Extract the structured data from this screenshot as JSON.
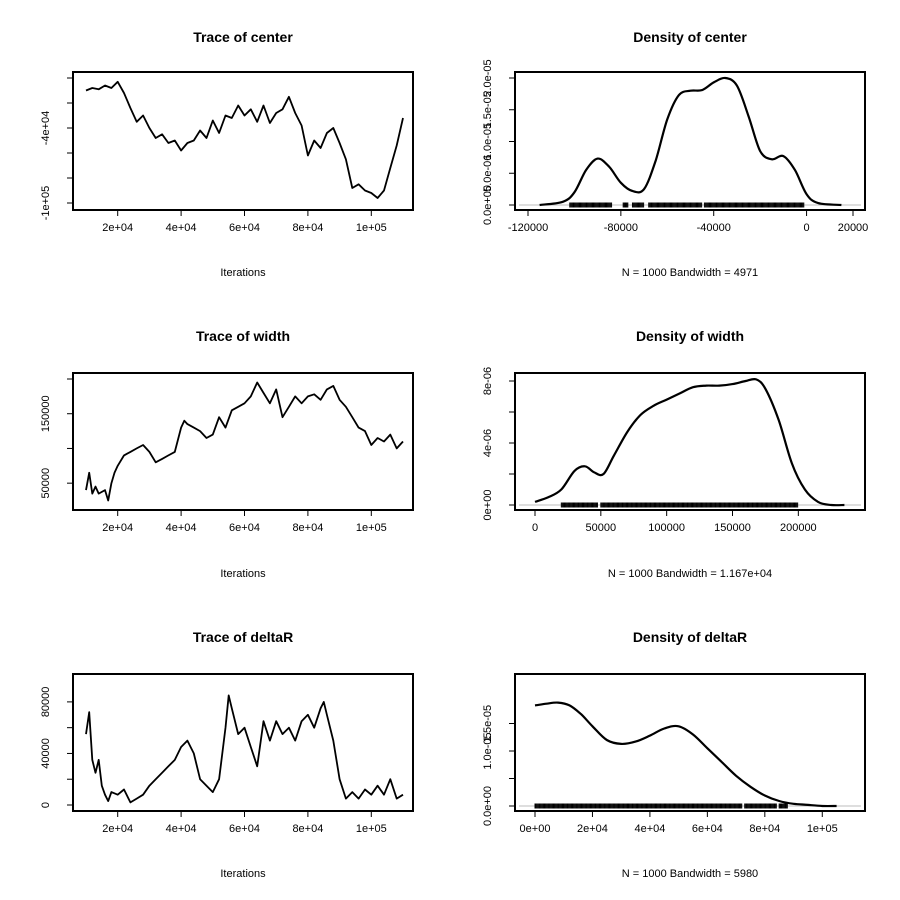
{
  "chart_data": [
    {
      "type": "line",
      "title": "Trace of center",
      "xlabel": "Iterations",
      "ylabel": "",
      "xlim": [
        10000,
        110000
      ],
      "ylim": [
        -100000,
        0
      ],
      "xticks": [
        20000,
        40000,
        60000,
        80000,
        100000
      ],
      "xtick_labels": [
        "2e+04",
        "4e+04",
        "6e+04",
        "8e+04",
        "1e+05"
      ],
      "yticks": [
        -100000,
        -80000,
        -60000,
        -40000,
        -20000,
        0
      ],
      "ytick_labels": [
        "-1e+05",
        "",
        "",
        "-4e+04",
        "",
        ""
      ],
      "x": [
        10000,
        12000,
        14000,
        16000,
        18000,
        20000,
        22000,
        24000,
        26000,
        28000,
        30000,
        32000,
        34000,
        36000,
        38000,
        40000,
        42000,
        44000,
        46000,
        48000,
        50000,
        52000,
        54000,
        56000,
        58000,
        60000,
        62000,
        64000,
        66000,
        68000,
        70000,
        72000,
        74000,
        76000,
        78000,
        80000,
        82000,
        84000,
        86000,
        88000,
        90000,
        92000,
        94000,
        96000,
        98000,
        100000,
        102000,
        104000,
        106000,
        108000,
        110000
      ],
      "y": [
        -10000,
        -8000,
        -9000,
        -6000,
        -8000,
        -3000,
        -12000,
        -24000,
        -35000,
        -30000,
        -40000,
        -48000,
        -45000,
        -52000,
        -50000,
        -58000,
        -52000,
        -50000,
        -42000,
        -48000,
        -34000,
        -44000,
        -30000,
        -32000,
        -22000,
        -30000,
        -25000,
        -35000,
        -22000,
        -36000,
        -28000,
        -25000,
        -15000,
        -28000,
        -38000,
        -62000,
        -50000,
        -56000,
        -44000,
        -40000,
        -52000,
        -65000,
        -88000,
        -85000,
        -90000,
        -92000,
        -96000,
        -90000,
        -72000,
        -54000,
        -32000
      ]
    },
    {
      "type": "area",
      "title": "Density of center",
      "xlabel": "N = 1000   Bandwidth = 4971",
      "ylabel": "",
      "xlim": [
        -120000,
        20000
      ],
      "ylim": [
        0,
        2e-05
      ],
      "xticks": [
        -120000,
        -80000,
        -40000,
        0,
        20000
      ],
      "xtick_labels": [
        "-120000",
        "-80000",
        "-40000",
        "0",
        "20000"
      ],
      "yticks": [
        0,
        5e-06,
        1e-05,
        1.5e-05,
        2e-05
      ],
      "ytick_labels": [
        "0.0e+00",
        "5.0e-06",
        "1.0e-05",
        "1.5e-05",
        "2.0e-05"
      ],
      "x": [
        -115000,
        -105000,
        -100000,
        -95000,
        -90000,
        -85000,
        -80000,
        -75000,
        -70000,
        -65000,
        -60000,
        -55000,
        -50000,
        -45000,
        -40000,
        -35000,
        -30000,
        -25000,
        -20000,
        -15000,
        -10000,
        -5000,
        0,
        5000,
        15000
      ],
      "y": [
        0,
        5e-07,
        2e-06,
        5.5e-06,
        7.3e-06,
        6e-06,
        3.5e-06,
        2.2e-06,
        2.5e-06,
        7e-06,
        1.35e-05,
        1.73e-05,
        1.8e-05,
        1.81e-05,
        1.93e-05,
        2e-05,
        1.88e-05,
        1.4e-05,
        8.5e-06,
        7.2e-06,
        7.7e-06,
        5.5e-06,
        1.7e-06,
        3e-07,
        0
      ],
      "rug": [
        [
          -102000,
          -84000
        ],
        [
          -79000,
          -77000
        ],
        [
          -75000,
          -70000
        ],
        [
          -68000,
          -45000
        ],
        [
          -44000,
          -1000
        ]
      ]
    },
    {
      "type": "line",
      "title": "Trace of width",
      "xlabel": "Iterations",
      "ylabel": "",
      "xlim": [
        10000,
        110000
      ],
      "ylim": [
        20000,
        200000
      ],
      "xticks": [
        20000,
        40000,
        60000,
        80000,
        100000
      ],
      "xtick_labels": [
        "2e+04",
        "4e+04",
        "6e+04",
        "8e+04",
        "1e+05"
      ],
      "yticks": [
        50000,
        100000,
        150000,
        200000
      ],
      "ytick_labels": [
        "50000",
        "",
        "150000",
        ""
      ],
      "x": [
        10000,
        11000,
        12000,
        13000,
        14000,
        16000,
        17000,
        18000,
        19000,
        20000,
        22000,
        24000,
        26000,
        28000,
        30000,
        32000,
        34000,
        36000,
        38000,
        40000,
        41000,
        42000,
        44000,
        46000,
        48000,
        50000,
        52000,
        54000,
        56000,
        58000,
        60000,
        62000,
        64000,
        66000,
        68000,
        70000,
        72000,
        74000,
        76000,
        78000,
        80000,
        82000,
        84000,
        86000,
        88000,
        90000,
        92000,
        94000,
        96000,
        98000,
        100000,
        102000,
        104000,
        106000,
        108000,
        110000
      ],
      "y": [
        40000,
        65000,
        35000,
        45000,
        35000,
        40000,
        25000,
        50000,
        65000,
        75000,
        90000,
        95000,
        100000,
        105000,
        95000,
        80000,
        85000,
        90000,
        95000,
        130000,
        140000,
        135000,
        130000,
        125000,
        115000,
        120000,
        145000,
        130000,
        155000,
        160000,
        165000,
        175000,
        195000,
        180000,
        165000,
        185000,
        145000,
        160000,
        175000,
        165000,
        175000,
        178000,
        170000,
        185000,
        190000,
        170000,
        160000,
        145000,
        130000,
        125000,
        105000,
        115000,
        110000,
        120000,
        100000,
        110000
      ]
    },
    {
      "type": "area",
      "title": "Density of width",
      "xlabel": "N = 1000   Bandwidth = 1.167e+04",
      "ylabel": "",
      "xlim": [
        0,
        240000
      ],
      "ylim": [
        0,
        8e-06
      ],
      "xticks": [
        0,
        50000,
        100000,
        150000,
        200000
      ],
      "xtick_labels": [
        "0",
        "50000",
        "100000",
        "150000",
        "200000"
      ],
      "yticks": [
        0,
        2e-06,
        4e-06,
        6e-06,
        8e-06
      ],
      "ytick_labels": [
        "0e+00",
        "",
        "4e-06",
        "",
        "8e-06"
      ],
      "x": [
        0,
        10000,
        20000,
        30000,
        38000,
        45000,
        52000,
        60000,
        70000,
        80000,
        90000,
        100000,
        110000,
        120000,
        130000,
        140000,
        150000,
        160000,
        168000,
        175000,
        185000,
        195000,
        205000,
        215000,
        225000,
        235000
      ],
      "y": [
        2e-07,
        5e-07,
        1e-06,
        2.2e-06,
        2.5e-06,
        2.1e-06,
        2e-06,
        3.2e-06,
        4.7e-06,
        5.8e-06,
        6.4e-06,
        6.8e-06,
        7.2e-06,
        7.6e-06,
        7.7e-06,
        7.7e-06,
        7.8e-06,
        8e-06,
        8.1e-06,
        7.5e-06,
        5.5e-06,
        2.7e-06,
        1e-06,
        2e-07,
        0,
        0
      ],
      "rug": [
        [
          20000,
          48000
        ],
        [
          50000,
          200000
        ]
      ]
    },
    {
      "type": "line",
      "title": "Trace of deltaR",
      "xlabel": "Iterations",
      "ylabel": "",
      "xlim": [
        10000,
        110000
      ],
      "ylim": [
        0,
        90000
      ],
      "xticks": [
        20000,
        40000,
        60000,
        80000,
        100000
      ],
      "xtick_labels": [
        "2e+04",
        "4e+04",
        "6e+04",
        "8e+04",
        "1e+05"
      ],
      "yticks": [
        0,
        20000,
        40000,
        60000,
        80000
      ],
      "ytick_labels": [
        "0",
        "",
        "40000",
        "",
        "80000"
      ],
      "x": [
        10000,
        11000,
        12000,
        13000,
        14000,
        15000,
        16000,
        17000,
        18000,
        20000,
        22000,
        24000,
        26000,
        28000,
        30000,
        32000,
        34000,
        36000,
        38000,
        40000,
        42000,
        44000,
        46000,
        48000,
        50000,
        52000,
        54000,
        55000,
        56000,
        58000,
        60000,
        62000,
        64000,
        66000,
        68000,
        70000,
        72000,
        74000,
        76000,
        78000,
        80000,
        82000,
        84000,
        85000,
        86000,
        88000,
        90000,
        92000,
        94000,
        96000,
        98000,
        100000,
        102000,
        104000,
        106000,
        108000,
        110000
      ],
      "y": [
        55000,
        72000,
        35000,
        25000,
        35000,
        15000,
        8000,
        3000,
        10000,
        8000,
        12000,
        2000,
        5000,
        8000,
        15000,
        20000,
        25000,
        30000,
        35000,
        45000,
        50000,
        40000,
        20000,
        15000,
        10000,
        20000,
        60000,
        85000,
        75000,
        55000,
        60000,
        45000,
        30000,
        65000,
        50000,
        65000,
        55000,
        60000,
        50000,
        65000,
        70000,
        60000,
        75000,
        80000,
        70000,
        50000,
        20000,
        5000,
        10000,
        5000,
        12000,
        8000,
        15000,
        8000,
        20000,
        5000,
        8000
      ]
    },
    {
      "type": "area",
      "title": "Density of deltaR",
      "xlabel": "N = 1000   Bandwidth = 5980",
      "ylabel": "",
      "xlim": [
        0,
        110000
      ],
      "ylim": [
        0,
        2e-05
      ],
      "xticks": [
        0,
        20000,
        40000,
        60000,
        80000,
        100000
      ],
      "xtick_labels": [
        "0e+00",
        "2e+04",
        "4e+04",
        "6e+04",
        "8e+04",
        "1e+05"
      ],
      "yticks": [
        0,
        5e-06,
        1e-05,
        1.5e-05
      ],
      "ytick_labels": [
        "0.0e+00",
        "",
        "1.0e-05",
        "1.5e-05"
      ],
      "x": [
        0,
        4000,
        8000,
        12000,
        16000,
        20000,
        25000,
        30000,
        35000,
        40000,
        45000,
        50000,
        55000,
        60000,
        65000,
        70000,
        75000,
        80000,
        85000,
        90000,
        95000,
        100000,
        105000
      ],
      "y": [
        1.83e-05,
        1.86e-05,
        1.88e-05,
        1.83e-05,
        1.67e-05,
        1.45e-05,
        1.2e-05,
        1.13e-05,
        1.17e-05,
        1.28e-05,
        1.41e-05,
        1.45e-05,
        1.3e-05,
        1.05e-05,
        8e-06,
        5.5e-06,
        3.5e-06,
        1.9e-06,
        9e-07,
        4e-07,
        2e-07,
        0,
        0
      ],
      "rug": [
        [
          0,
          72000
        ],
        [
          73000,
          84000
        ],
        [
          85000,
          88000
        ]
      ]
    }
  ]
}
